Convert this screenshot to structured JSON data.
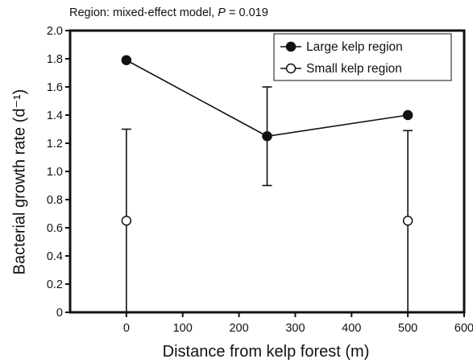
{
  "chart_data": {
    "type": "scatter",
    "title": {
      "prefix": "Region: mixed-effect model, ",
      "p_symbol": "P",
      "suffix": " = 0.019"
    },
    "xlabel": "Distance from kelp forest (m)",
    "ylabel": "Bacterial growth rate (d⁻¹)",
    "xlim": [
      -100,
      600
    ],
    "ylim": [
      0,
      2.0
    ],
    "x_ticks": [
      0,
      100,
      200,
      300,
      400,
      500,
      600
    ],
    "y_ticks": [
      0,
      0.2,
      0.4,
      0.6,
      0.8,
      1.0,
      1.2,
      1.4,
      1.6,
      1.8,
      2.0
    ],
    "y_tick_labels": [
      "0",
      "0.2",
      "0.4",
      "0.6",
      "0.8",
      "1.0",
      "1.2",
      "1.4",
      "1.6",
      "1.8",
      "2.0"
    ],
    "grid": false,
    "legend_position": "top-right",
    "series": [
      {
        "name": "Large kelp region",
        "marker": "filled-circle",
        "connected": true,
        "color": "#111111",
        "points": [
          {
            "x": 0,
            "y": 1.79,
            "err_low": null,
            "err_high": null
          },
          {
            "x": 250,
            "y": 1.25,
            "err_low": 0.9,
            "err_high": 1.6
          },
          {
            "x": 500,
            "y": 1.4,
            "err_low": null,
            "err_high": null
          }
        ]
      },
      {
        "name": "Small kelp region",
        "marker": "open-circle",
        "connected": false,
        "color": "#111111",
        "points": [
          {
            "x": 0,
            "y": 0.65,
            "err_low": 0,
            "err_high": 1.3
          },
          {
            "x": 500,
            "y": 0.65,
            "err_low": 0,
            "err_high": 1.29
          }
        ]
      }
    ]
  }
}
